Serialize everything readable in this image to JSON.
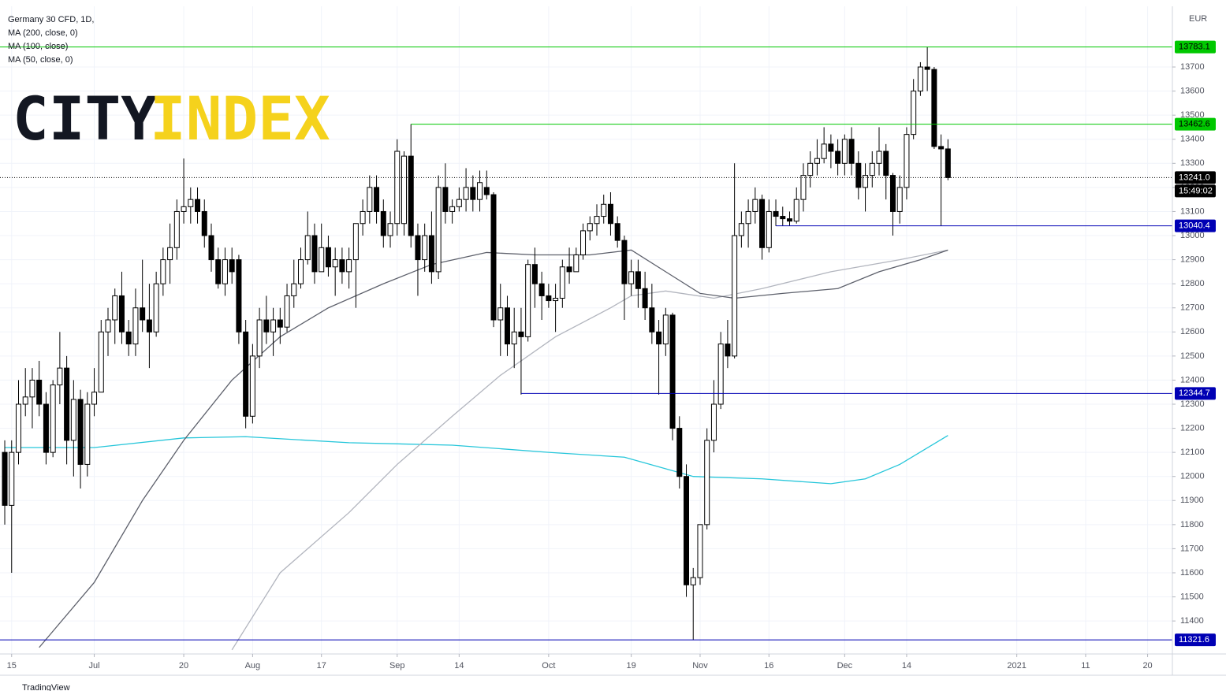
{
  "chart_data": {
    "type": "candlestick",
    "title": "Germany 30 CFD, 1D,",
    "currency": "EUR",
    "countdown": "15:49:02",
    "xlim": [
      -0.69,
      169.6
    ],
    "ylim": [
      11263,
      13952
    ],
    "xticks": [
      {
        "value": 1,
        "label": "15"
      },
      {
        "value": 13,
        "label": "Jul"
      },
      {
        "value": 26,
        "label": "20"
      },
      {
        "value": 36,
        "label": "Aug"
      },
      {
        "value": 46,
        "label": "17"
      },
      {
        "value": 57,
        "label": "Sep"
      },
      {
        "value": 66,
        "label": "14"
      },
      {
        "value": 79,
        "label": "Oct"
      },
      {
        "value": 91,
        "label": "19"
      },
      {
        "value": 101,
        "label": "Nov"
      },
      {
        "value": 111,
        "label": "16"
      },
      {
        "value": 122,
        "label": "Dec"
      },
      {
        "value": 131,
        "label": "14"
      },
      {
        "value": 147,
        "label": "2021"
      },
      {
        "value": 157,
        "label": "11"
      },
      {
        "value": 166,
        "label": "20"
      }
    ],
    "yticks": [
      11400,
      11500,
      11600,
      11700,
      11800,
      11900,
      12000,
      12100,
      12200,
      12300,
      12400,
      12500,
      12600,
      12700,
      12800,
      12900,
      13000,
      13100,
      13200,
      13300,
      13400,
      13500,
      13600,
      13700
    ],
    "grid": true,
    "up_color": "#ffffff",
    "down_color": "#000000",
    "candles": [
      [
        12100,
        12150,
        11800,
        11880
      ],
      [
        11880,
        12150,
        11600,
        12100
      ],
      [
        12100,
        12400,
        12050,
        12300
      ],
      [
        12300,
        12450,
        12250,
        12330
      ],
      [
        12330,
        12450,
        12200,
        12400
      ],
      [
        12400,
        12480,
        12250,
        12300
      ],
      [
        12300,
        12350,
        12050,
        12100
      ],
      [
        12100,
        12400,
        12080,
        12380
      ],
      [
        12380,
        12600,
        12300,
        12450
      ],
      [
        12450,
        12500,
        12050,
        12150
      ],
      [
        12150,
        12400,
        12000,
        12320
      ],
      [
        12320,
        12360,
        11950,
        12050
      ],
      [
        12050,
        12350,
        12000,
        12300
      ],
      [
        12300,
        12450,
        12250,
        12350
      ],
      [
        12350,
        12650,
        12350,
        12600
      ],
      [
        12600,
        12700,
        12500,
        12650
      ],
      [
        12650,
        12780,
        12550,
        12750
      ],
      [
        12750,
        12850,
        12550,
        12600
      ],
      [
        12600,
        12650,
        12500,
        12550
      ],
      [
        12550,
        12780,
        12500,
        12700
      ],
      [
        12700,
        12900,
        12600,
        12650
      ],
      [
        12650,
        12800,
        12450,
        12600
      ],
      [
        12600,
        12850,
        12580,
        12800
      ],
      [
        12800,
        12950,
        12750,
        12900
      ],
      [
        12900,
        13050,
        12800,
        12950
      ],
      [
        12950,
        13150,
        12900,
        13100
      ],
      [
        13100,
        13320,
        13050,
        13120
      ],
      [
        13120,
        13200,
        13050,
        13150
      ],
      [
        13150,
        13200,
        13050,
        13100
      ],
      [
        13100,
        13150,
        12950,
        13000
      ],
      [
        13000,
        13050,
        12850,
        12900
      ],
      [
        12900,
        12950,
        12780,
        12800
      ],
      [
        12800,
        12950,
        12750,
        12900
      ],
      [
        12900,
        12950,
        12800,
        12850
      ],
      [
        12900,
        12920,
        12550,
        12600
      ],
      [
        12600,
        12650,
        12200,
        12250
      ],
      [
        12250,
        12550,
        12220,
        12500
      ],
      [
        12500,
        12700,
        12450,
        12650
      ],
      [
        12650,
        12750,
        12550,
        12600
      ],
      [
        12600,
        12700,
        12500,
        12650
      ],
      [
        12650,
        12700,
        12550,
        12620
      ],
      [
        12620,
        12800,
        12600,
        12750
      ],
      [
        12750,
        12900,
        12700,
        12800
      ],
      [
        12800,
        12950,
        12780,
        12900
      ],
      [
        12900,
        13100,
        12880,
        13000
      ],
      [
        13000,
        13050,
        12800,
        12850
      ],
      [
        12850,
        13050,
        12850,
        12950
      ],
      [
        12950,
        13000,
        12830,
        12870
      ],
      [
        12870,
        12950,
        12750,
        12900
      ],
      [
        12900,
        12950,
        12800,
        12850
      ],
      [
        12850,
        12950,
        12780,
        12900
      ],
      [
        12900,
        13050,
        12700,
        13050
      ],
      [
        13050,
        13150,
        13000,
        13100
      ],
      [
        13100,
        13250,
        13050,
        13200
      ],
      [
        13200,
        13250,
        13050,
        13100
      ],
      [
        13100,
        13150,
        12950,
        13000
      ],
      [
        13000,
        13100,
        12950,
        13050
      ],
      [
        13050,
        13400,
        13000,
        13350
      ],
      [
        13050,
        13350,
        13000,
        13330
      ],
      [
        13330,
        13463,
        12950,
        13000
      ],
      [
        13000,
        13050,
        12750,
        12900
      ],
      [
        12900,
        13050,
        12850,
        13000
      ],
      [
        13000,
        13100,
        12800,
        12850
      ],
      [
        12850,
        13250,
        12820,
        13200
      ],
      [
        13200,
        13300,
        13050,
        13100
      ],
      [
        13100,
        13150,
        13050,
        13120
      ],
      [
        13120,
        13200,
        13100,
        13150
      ],
      [
        13150,
        13280,
        13100,
        13200
      ],
      [
        13200,
        13250,
        13100,
        13150
      ],
      [
        13150,
        13270,
        13100,
        13220
      ],
      [
        13200,
        13270,
        13150,
        13170
      ],
      [
        13170,
        13180,
        12620,
        12650
      ],
      [
        12650,
        12800,
        12500,
        12700
      ],
      [
        12700,
        12750,
        12500,
        12550
      ],
      [
        12550,
        12700,
        12450,
        12600
      ],
      [
        12600,
        12700,
        12340,
        12580
      ],
      [
        12580,
        12900,
        12560,
        12880
      ],
      [
        12880,
        12950,
        12700,
        12800
      ],
      [
        12800,
        12850,
        12650,
        12750
      ],
      [
        12750,
        12800,
        12700,
        12730
      ],
      [
        12730,
        12800,
        12600,
        12740
      ],
      [
        12740,
        12900,
        12700,
        12870
      ],
      [
        12870,
        12950,
        12800,
        12850
      ],
      [
        12850,
        12950,
        12850,
        12920
      ],
      [
        12920,
        13050,
        12900,
        13020
      ],
      [
        13020,
        13080,
        12980,
        13050
      ],
      [
        13050,
        13130,
        13000,
        13080
      ],
      [
        13080,
        13170,
        13050,
        13130
      ],
      [
        13130,
        13180,
        13000,
        13050
      ],
      [
        13050,
        13080,
        12950,
        12980
      ],
      [
        12980,
        13000,
        12650,
        12800
      ],
      [
        12800,
        12900,
        12750,
        12850
      ],
      [
        12850,
        12900,
        12700,
        12780
      ],
      [
        12780,
        12850,
        12650,
        12700
      ],
      [
        12700,
        12800,
        12550,
        12600
      ],
      [
        12600,
        12650,
        12340,
        12550
      ],
      [
        12550,
        12700,
        12500,
        12670
      ],
      [
        12670,
        12680,
        12150,
        12200
      ],
      [
        12200,
        12250,
        11950,
        12000
      ],
      [
        12000,
        12050,
        11500,
        11550
      ],
      [
        11550,
        11620,
        11322,
        11580
      ],
      [
        11580,
        11800,
        11550,
        11800
      ],
      [
        11800,
        12200,
        11780,
        12150
      ],
      [
        12150,
        12400,
        12100,
        12300
      ],
      [
        12300,
        12600,
        12280,
        12550
      ],
      [
        12550,
        12650,
        12450,
        12500
      ],
      [
        12500,
        13300,
        12490,
        13000
      ],
      [
        13000,
        13100,
        12950,
        13050
      ],
      [
        13050,
        13150,
        12950,
        13100
      ],
      [
        13100,
        13200,
        13050,
        13150
      ],
      [
        13150,
        13170,
        12900,
        12950
      ],
      [
        12950,
        13150,
        12930,
        13100
      ],
      [
        13100,
        13150,
        13040,
        13080
      ],
      [
        13080,
        13120,
        13040,
        13070
      ],
      [
        13070,
        13100,
        13040,
        13060
      ],
      [
        13060,
        13200,
        13050,
        13150
      ],
      [
        13150,
        13300,
        13100,
        13250
      ],
      [
        13250,
        13350,
        13200,
        13300
      ],
      [
        13300,
        13400,
        13250,
        13320
      ],
      [
        13320,
        13450,
        13300,
        13380
      ],
      [
        13380,
        13420,
        13280,
        13350
      ],
      [
        13350,
        13400,
        13250,
        13300
      ],
      [
        13300,
        13420,
        13250,
        13400
      ],
      [
        13400,
        13450,
        13250,
        13300
      ],
      [
        13300,
        13350,
        13150,
        13200
      ],
      [
        13200,
        13300,
        13100,
        13250
      ],
      [
        13250,
        13350,
        13200,
        13300
      ],
      [
        13300,
        13450,
        13250,
        13350
      ],
      [
        13350,
        13380,
        13150,
        13250
      ],
      [
        13250,
        13260,
        13000,
        13100
      ],
      [
        13100,
        13250,
        13050,
        13200
      ],
      [
        13200,
        13450,
        13150,
        13420
      ],
      [
        13420,
        13650,
        13400,
        13600
      ],
      [
        13600,
        13720,
        13580,
        13700
      ],
      [
        13700,
        13783,
        13600,
        13690
      ],
      [
        13690,
        13700,
        13360,
        13370
      ],
      [
        13370,
        13420,
        13040,
        13360
      ],
      [
        13360,
        13400,
        13230,
        13241
      ]
    ],
    "series": [
      {
        "name": "MA (200, close, 0)",
        "color": "#26c6da",
        "x": [
          0,
          13,
          26,
          35,
          50,
          65,
          79,
          90,
          100,
          110,
          120,
          125,
          130,
          137
        ],
        "values": [
          12120,
          12120,
          12160,
          12165,
          12140,
          12130,
          12100,
          12080,
          12000,
          11990,
          11970,
          11990,
          12050,
          12170
        ]
      },
      {
        "name": "MA (100, close)",
        "color": "#b2b5be",
        "x": [
          33,
          40,
          50,
          57,
          65,
          72,
          80,
          88,
          91,
          96,
          103,
          110,
          120,
          130,
          137
        ],
        "values": [
          11280,
          11600,
          11850,
          12050,
          12250,
          12420,
          12580,
          12700,
          12750,
          12770,
          12740,
          12780,
          12850,
          12900,
          12940
        ]
      },
      {
        "name": "MA (50, close, 0)",
        "color": "#5d606b",
        "x": [
          5,
          13,
          20,
          26,
          33,
          40,
          47,
          55,
          62,
          70,
          77,
          85,
          91,
          96,
          101,
          106,
          113,
          121,
          127,
          133,
          137
        ],
        "values": [
          11290,
          11560,
          11900,
          12150,
          12400,
          12580,
          12700,
          12800,
          12880,
          12930,
          12920,
          12920,
          12940,
          12850,
          12760,
          12740,
          12760,
          12780,
          12850,
          12900,
          12940
        ]
      }
    ],
    "levels": [
      {
        "value": 13783.1,
        "color": "#00c800"
      },
      {
        "value": 13462.6,
        "color": "#00c800",
        "from": 59
      },
      {
        "value": 13241.0,
        "label": "13241.0",
        "color": "#000000",
        "style": "dotted"
      },
      {
        "value": 13040.4,
        "color": "#0000b4",
        "from": 112
      },
      {
        "value": 12344.7,
        "color": "#0000b4",
        "from": 75
      },
      {
        "value": 11321.6,
        "color": "#0000b4"
      }
    ]
  },
  "logo": {
    "left": "CITY",
    "right": "INDEX"
  },
  "footer": "TradingView"
}
